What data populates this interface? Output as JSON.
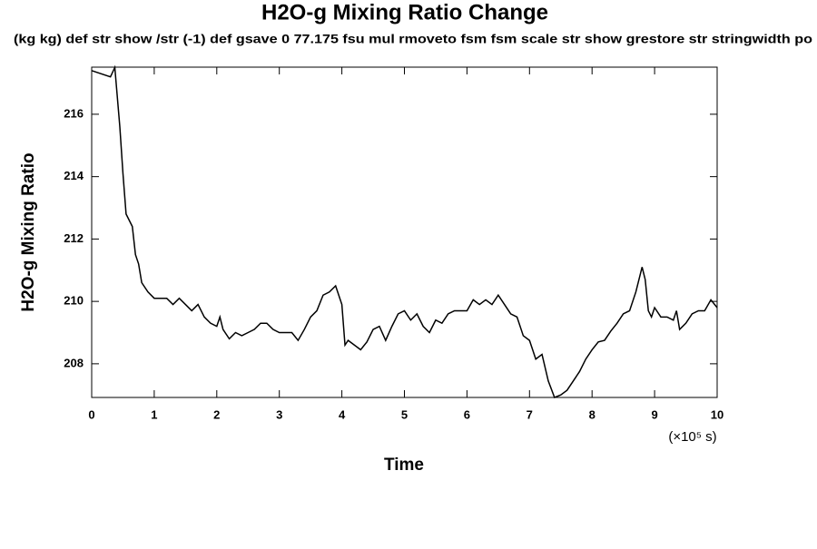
{
  "chart_data": {
    "type": "line",
    "title": "H2O-g Mixing Ratio Change",
    "subtitle": "(kg kg) def str show /str (-1) def gsave 0 77.175 fsu mul rmoveto fsm fsm scale str show grestore str stringwidth po",
    "y_label": "H2O-g Mixing Ratio",
    "x_label": "Time",
    "x_unit": "(×10⁵ s)",
    "x": [
      0,
      0.3,
      0.37,
      0.45,
      0.5,
      0.55,
      0.65,
      0.7,
      0.75,
      0.8,
      0.9,
      1.0,
      1.1,
      1.2,
      1.3,
      1.4,
      1.5,
      1.6,
      1.7,
      1.8,
      1.9,
      2.0,
      2.05,
      2.1,
      2.2,
      2.3,
      2.4,
      2.5,
      2.6,
      2.7,
      2.8,
      2.9,
      3.0,
      3.1,
      3.2,
      3.3,
      3.4,
      3.5,
      3.6,
      3.7,
      3.8,
      3.9,
      4.0,
      4.05,
      4.1,
      4.2,
      4.3,
      4.4,
      4.5,
      4.6,
      4.7,
      4.8,
      4.9,
      5.0,
      5.1,
      5.2,
      5.3,
      5.4,
      5.5,
      5.6,
      5.7,
      5.8,
      5.9,
      6.0,
      6.1,
      6.2,
      6.3,
      6.4,
      6.5,
      6.6,
      6.7,
      6.8,
      6.9,
      7.0,
      7.1,
      7.2,
      7.3,
      7.4,
      7.5,
      7.6,
      7.7,
      7.8,
      7.9,
      8.0,
      8.1,
      8.2,
      8.3,
      8.4,
      8.5,
      8.6,
      8.7,
      8.8,
      8.85,
      8.9,
      8.95,
      9.0,
      9.1,
      9.2,
      9.3,
      9.35,
      9.4,
      9.5,
      9.6,
      9.7,
      9.8,
      9.9,
      10
    ],
    "series": [
      {
        "color": "#000000",
        "values": [
          217.4,
          217.2,
          217.5,
          215.6,
          214.1,
          212.8,
          212.4,
          211.5,
          211.2,
          210.6,
          210.3,
          210.1,
          210.1,
          210.1,
          209.9,
          210.1,
          209.9,
          209.7,
          209.9,
          209.5,
          209.3,
          209.2,
          209.5,
          209.1,
          208.8,
          209.0,
          208.9,
          209.0,
          209.1,
          209.3,
          209.3,
          209.1,
          209.0,
          209.0,
          209.0,
          208.75,
          209.1,
          209.5,
          209.7,
          210.2,
          210.3,
          210.5,
          209.9,
          208.6,
          208.75,
          208.6,
          208.45,
          208.7,
          209.1,
          209.2,
          208.75,
          209.2,
          209.6,
          209.7,
          209.4,
          209.6,
          209.2,
          209.0,
          209.4,
          209.3,
          209.6,
          209.7,
          209.7,
          209.7,
          210.05,
          209.9,
          210.05,
          209.9,
          210.2,
          209.9,
          209.6,
          209.5,
          208.9,
          208.75,
          208.15,
          208.3,
          207.45,
          206.92,
          207.0,
          207.15,
          207.45,
          207.75,
          208.15,
          208.45,
          208.7,
          208.75,
          209.05,
          209.3,
          209.6,
          209.7,
          210.3,
          211.1,
          210.7,
          209.7,
          209.5,
          209.8,
          209.5,
          209.5,
          209.4,
          209.7,
          209.1,
          209.3,
          209.6,
          209.7,
          209.7,
          210.05,
          209.8
        ]
      }
    ],
    "xlim": [
      0,
      10
    ],
    "xticks": [
      0,
      1,
      2,
      3,
      4,
      5,
      6,
      7,
      8,
      9,
      10
    ],
    "ylim": [
      206.92,
      217.51
    ],
    "yticks": [
      208,
      210,
      212,
      214,
      216
    ]
  }
}
